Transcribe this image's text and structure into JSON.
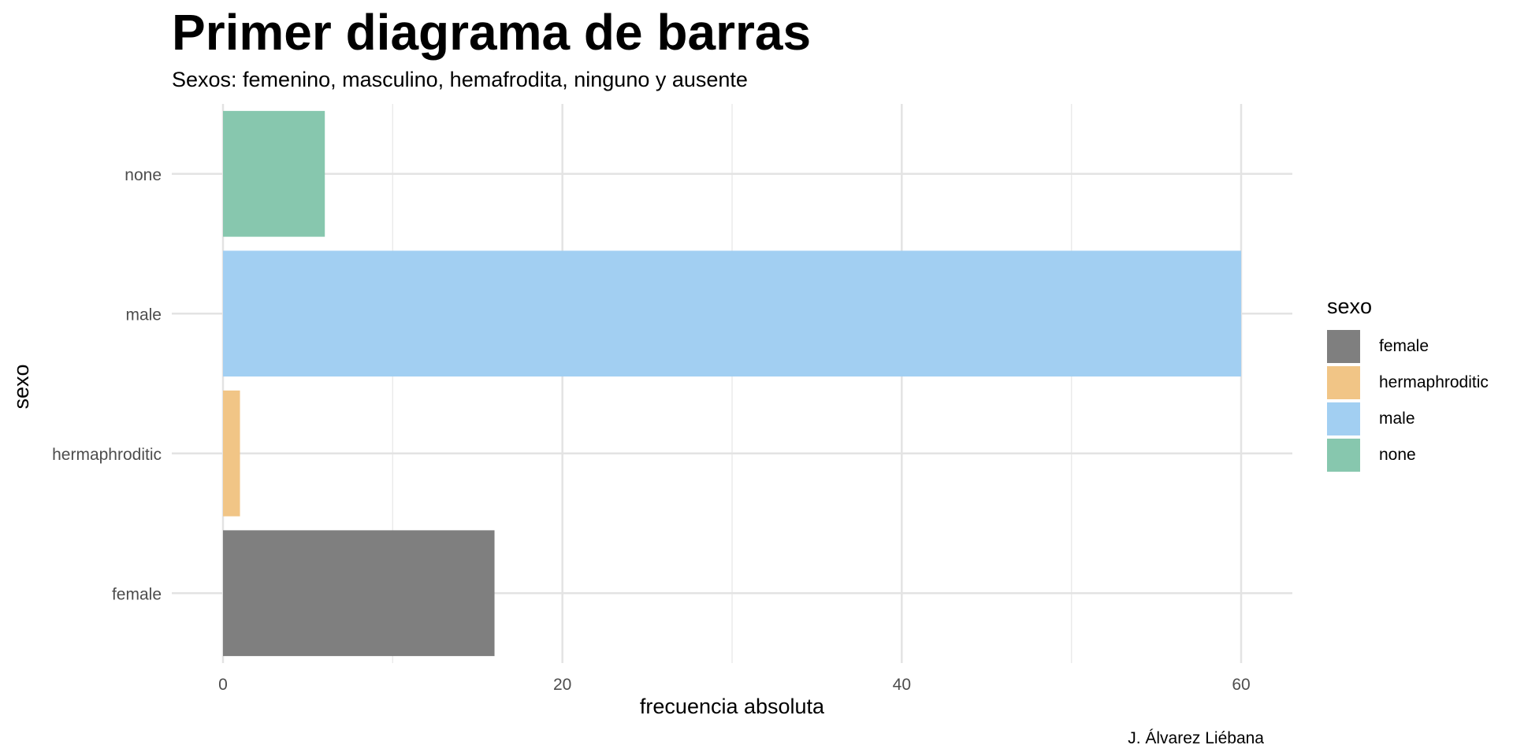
{
  "chart_data": {
    "type": "bar",
    "orientation": "horizontal",
    "title": "Primer diagrama de barras",
    "subtitle": "Sexos: femenino, masculino, hemafrodita, ninguno y ausente",
    "caption": "J. Álvarez Liébana",
    "xlabel": "frecuencia absoluta",
    "ylabel": "sexo",
    "categories": [
      "female",
      "hermaphroditic",
      "male",
      "none"
    ],
    "values": [
      16,
      1,
      60,
      6
    ],
    "xlim": [
      0,
      63
    ],
    "xticks": [
      0,
      20,
      40,
      60
    ],
    "grid": true,
    "legend": {
      "title": "sexo",
      "placement": "right",
      "entries": [
        "female",
        "hermaphroditic",
        "male",
        "none"
      ]
    },
    "colors": [
      "#7f7f7f",
      "#f1c586",
      "#a2cff2",
      "#87c7ae"
    ]
  }
}
